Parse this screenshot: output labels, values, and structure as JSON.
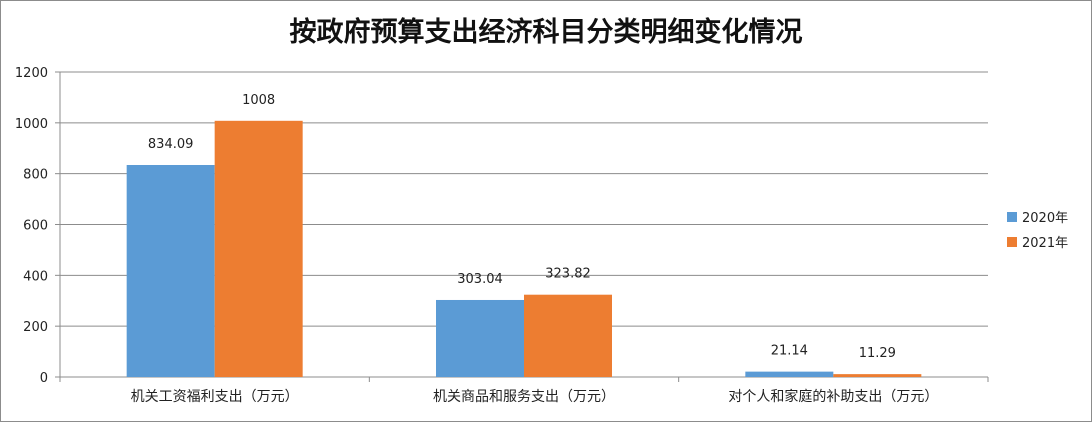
{
  "chart_data": {
    "type": "bar",
    "title": "按政府预算支出经济科目分类明细变化情况",
    "categories": [
      "机关工资福利支出（万元）",
      "机关商品和服务支出（万元）",
      "对个人和家庭的补助支出（万元）"
    ],
    "series": [
      {
        "name": "2020年",
        "values": [
          834.09,
          303.04,
          21.14
        ],
        "labels": [
          "834.09",
          "303.04",
          "21.14"
        ],
        "color": "#5b9bd5"
      },
      {
        "name": "2021年",
        "values": [
          1008,
          323.82,
          11.29
        ],
        "labels": [
          "1008",
          "323.82",
          "11.29"
        ],
        "color": "#ed7d31"
      }
    ],
    "ylim": [
      0,
      1200
    ],
    "yticks": [
      0,
      200,
      400,
      600,
      800,
      1000,
      1200
    ],
    "grid": true,
    "legend": "right"
  }
}
